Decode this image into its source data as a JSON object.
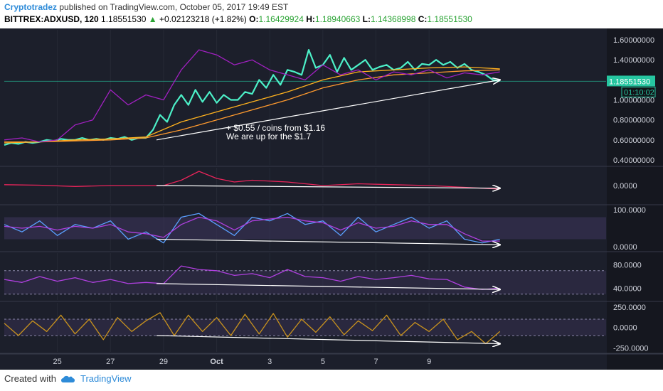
{
  "header": {
    "author": "Cryptotradez",
    "published": "published on TradingView.com, October 05, 2017 19:49 EST",
    "symbol": "BITTREX:ADXUSD, 120",
    "last": "1.18551530",
    "change": "+0.02123218 (+1.82%)",
    "o_label": "O:",
    "o": "1.16429924",
    "h_label": "H:",
    "h": "1.18940663",
    "l_label": "L:",
    "l": "1.14368998",
    "c_label": "C:",
    "c": "1.18551530"
  },
  "footer": {
    "created_with": "Created with",
    "brand": "TradingView"
  },
  "colors": {
    "price": "#4cf0c8",
    "ma_fast": "#ffb21e",
    "ma_slow": "#ff9a2e",
    "aux": "#a020c0",
    "macd": "#e8245a",
    "stoch_k": "#5aa0ff",
    "stoch_d": "#b040e0",
    "rsi": "#b040e0",
    "cci": "#c8921e",
    "arrow": "#ffffff",
    "price_badge": "#26c6a0"
  },
  "chart_data": [
    {
      "type": "line",
      "panel": "price",
      "ylim": [
        0.35,
        1.7
      ],
      "y_ticks": [
        "1.60000000",
        "1.40000000",
        "1.00000000",
        "0.80000000",
        "0.60000000",
        "0.40000000"
      ],
      "price_label": "1.18551530",
      "timer_label": "01:10:02",
      "annotation_lines": [
        "+ $0.55 / coins from $1.16",
        "We are up for the $1.7"
      ],
      "series": [
        {
          "role": "price",
          "x": [
            0,
            2,
            4,
            6,
            8,
            10,
            12,
            14,
            16,
            18,
            20,
            22,
            24,
            26,
            28,
            30,
            32,
            34,
            36,
            38,
            40,
            42,
            44,
            46,
            48,
            50,
            52,
            54,
            56,
            58,
            60,
            62,
            64,
            66,
            68,
            70,
            72,
            74,
            76,
            78,
            80,
            82,
            84,
            86,
            88,
            90,
            92,
            94,
            96,
            98,
            100,
            102,
            104,
            106,
            108,
            110,
            112,
            114,
            116,
            118,
            120,
            122,
            124,
            126,
            128,
            130,
            132,
            134,
            136,
            138,
            140
          ],
          "values": [
            0.55,
            0.57,
            0.56,
            0.58,
            0.57,
            0.58,
            0.6,
            0.59,
            0.61,
            0.6,
            0.6,
            0.62,
            0.6,
            0.61,
            0.6,
            0.62,
            0.61,
            0.63,
            0.6,
            0.62,
            0.62,
            0.7,
            0.85,
            0.78,
            0.95,
            1.05,
            0.95,
            1.1,
            0.98,
            1.08,
            0.97,
            1.05,
            1.0,
            1.0,
            1.08,
            1.06,
            1.2,
            1.12,
            1.25,
            1.15,
            1.3,
            1.28,
            1.25,
            1.5,
            1.32,
            1.35,
            1.45,
            1.28,
            1.42,
            1.3,
            1.35,
            1.4,
            1.3,
            1.33,
            1.35,
            1.3,
            1.32,
            1.38,
            1.3,
            1.36,
            1.35,
            1.4,
            1.35,
            1.38,
            1.32,
            1.36,
            1.3,
            1.28,
            1.25,
            1.2,
            1.19
          ]
        },
        {
          "role": "ma_fast",
          "x": [
            0,
            10,
            20,
            30,
            40,
            50,
            60,
            70,
            80,
            90,
            100,
            110,
            120,
            130,
            140
          ],
          "values": [
            0.57,
            0.58,
            0.6,
            0.61,
            0.63,
            0.78,
            0.88,
            0.98,
            1.08,
            1.2,
            1.28,
            1.3,
            1.32,
            1.33,
            1.31
          ]
        },
        {
          "role": "ma_slow",
          "x": [
            0,
            10,
            20,
            30,
            40,
            50,
            60,
            70,
            80,
            90,
            100,
            110,
            120,
            130,
            140
          ],
          "values": [
            0.58,
            0.58,
            0.59,
            0.6,
            0.62,
            0.7,
            0.8,
            0.9,
            1.0,
            1.12,
            1.2,
            1.25,
            1.27,
            1.29,
            1.3
          ]
        },
        {
          "role": "aux",
          "x": [
            0,
            5,
            10,
            15,
            20,
            25,
            30,
            35,
            40,
            45,
            50,
            55,
            60,
            65,
            70,
            75,
            80,
            85,
            90,
            95,
            100,
            105,
            110,
            115,
            120,
            125,
            130,
            135,
            140
          ],
          "values": [
            0.6,
            0.62,
            0.58,
            0.6,
            0.75,
            0.8,
            1.1,
            0.95,
            1.05,
            1.0,
            1.3,
            1.5,
            1.45,
            1.35,
            1.4,
            1.3,
            1.25,
            1.2,
            1.35,
            1.25,
            1.3,
            1.2,
            1.28,
            1.25,
            1.3,
            1.22,
            1.27,
            1.25,
            1.28
          ]
        }
      ],
      "trend_arrow": {
        "from": [
          43,
          0.6
        ],
        "to": [
          140,
          1.2
        ]
      }
    },
    {
      "type": "line",
      "panel": "macd",
      "ylim": [
        -1,
        1
      ],
      "y_ticks": [
        "0.0000"
      ],
      "series": [
        {
          "role": "macd",
          "x": [
            0,
            10,
            20,
            30,
            40,
            45,
            50,
            55,
            60,
            65,
            70,
            80,
            90,
            100,
            110,
            120,
            130,
            140
          ],
          "values": [
            0.05,
            0.02,
            -0.05,
            0.0,
            0.0,
            0.0,
            0.3,
            0.8,
            0.4,
            0.2,
            0.3,
            0.2,
            0.0,
            0.1,
            0.05,
            0.0,
            -0.1,
            -0.2
          ]
        }
      ],
      "trend_arrow": {
        "from": [
          43,
          0.0
        ],
        "to": [
          140,
          -0.15
        ]
      }
    },
    {
      "type": "line",
      "panel": "stoch",
      "ylim": [
        -10,
        110
      ],
      "y_ticks": [
        "100.0000",
        "0.0000"
      ],
      "series": [
        {
          "role": "stoch_k",
          "x": [
            0,
            5,
            10,
            15,
            20,
            25,
            30,
            35,
            40,
            45,
            50,
            55,
            60,
            65,
            70,
            75,
            80,
            85,
            90,
            95,
            100,
            105,
            110,
            115,
            120,
            125,
            130,
            135,
            140
          ],
          "values": [
            60,
            40,
            70,
            30,
            60,
            50,
            70,
            20,
            40,
            10,
            80,
            90,
            60,
            30,
            80,
            70,
            90,
            60,
            70,
            30,
            80,
            40,
            60,
            80,
            50,
            70,
            20,
            10,
            20
          ]
        },
        {
          "role": "stoch_d",
          "x": [
            0,
            5,
            10,
            15,
            20,
            25,
            30,
            35,
            40,
            45,
            50,
            55,
            60,
            65,
            70,
            75,
            80,
            85,
            90,
            95,
            100,
            105,
            110,
            115,
            120,
            125,
            130,
            135,
            140
          ],
          "values": [
            55,
            50,
            55,
            45,
            55,
            50,
            60,
            40,
            35,
            25,
            60,
            80,
            70,
            45,
            70,
            75,
            80,
            70,
            65,
            45,
            65,
            50,
            55,
            70,
            60,
            60,
            35,
            15,
            15
          ]
        }
      ],
      "trend_arrow": {
        "from": [
          43,
          20
        ],
        "to": [
          140,
          5
        ]
      }
    },
    {
      "type": "line",
      "panel": "rsi",
      "ylim": [
        20,
        100
      ],
      "y_ticks": [
        "80.0000",
        "40.0000"
      ],
      "series": [
        {
          "role": "rsi",
          "x": [
            0,
            5,
            10,
            15,
            20,
            25,
            30,
            35,
            40,
            45,
            50,
            55,
            60,
            65,
            70,
            75,
            80,
            85,
            90,
            95,
            100,
            105,
            110,
            115,
            120,
            125,
            130,
            135,
            140
          ],
          "values": [
            55,
            50,
            60,
            52,
            58,
            50,
            55,
            48,
            50,
            48,
            78,
            72,
            70,
            62,
            65,
            58,
            72,
            60,
            58,
            52,
            60,
            55,
            58,
            62,
            56,
            55,
            42,
            38,
            40
          ]
        }
      ],
      "trend_arrow": {
        "from": [
          43,
          48
        ],
        "to": [
          140,
          38
        ]
      }
    },
    {
      "type": "line",
      "panel": "cci",
      "ylim": [
        -300,
        300
      ],
      "y_ticks": [
        "250.0000",
        "0.0000",
        "-250.0000"
      ],
      "series": [
        {
          "role": "cci",
          "x": [
            0,
            4,
            8,
            12,
            16,
            20,
            24,
            28,
            32,
            36,
            40,
            44,
            48,
            52,
            56,
            60,
            64,
            68,
            72,
            76,
            80,
            84,
            88,
            92,
            96,
            100,
            104,
            108,
            112,
            116,
            120,
            124,
            128,
            132,
            136,
            140
          ],
          "values": [
            50,
            -100,
            80,
            -50,
            150,
            -80,
            100,
            -150,
            120,
            -50,
            80,
            180,
            -100,
            150,
            -50,
            120,
            -100,
            160,
            -80,
            170,
            -120,
            100,
            -60,
            130,
            -90,
            80,
            -40,
            150,
            -100,
            60,
            -50,
            100,
            -150,
            -50,
            -200,
            -50
          ]
        }
      ],
      "trend_arrow": {
        "from": [
          43,
          -100
        ],
        "to": [
          140,
          -200
        ]
      }
    }
  ],
  "x_axis": {
    "ticks": [
      "25",
      "27",
      "29",
      "Oct",
      "3",
      "5",
      "7",
      "9"
    ]
  }
}
